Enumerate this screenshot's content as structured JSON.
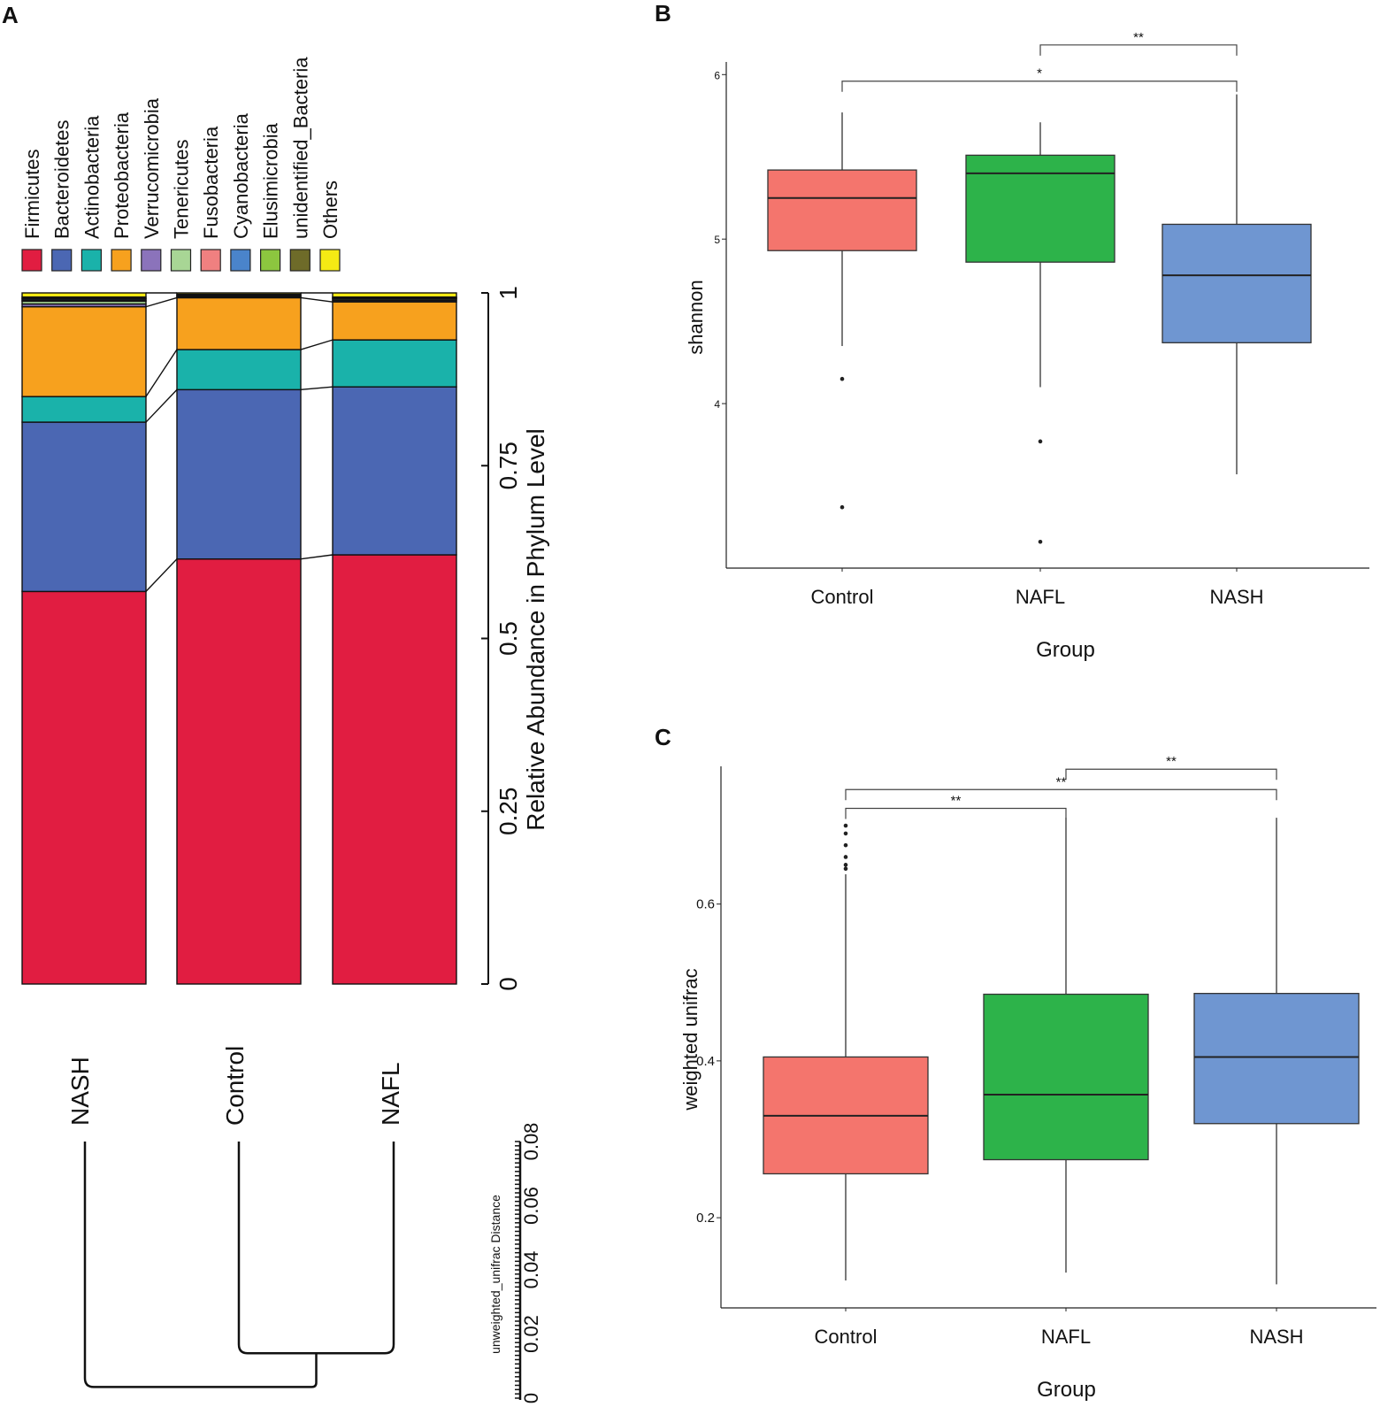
{
  "panels": {
    "a": "A",
    "b": "B",
    "c": "C"
  },
  "chart_data": [
    {
      "id": "A",
      "type": "stacked-bar",
      "orientation": "rotated",
      "ylabel": "Relative Abundance in Phylum Level",
      "ylim": [
        0,
        1
      ],
      "yticks": [
        "0",
        "0.25",
        "0.5",
        "0.75",
        "1"
      ],
      "ytick_values": [
        0,
        0.25,
        0.5,
        0.75,
        1
      ],
      "categories": [
        "NASH",
        "Control",
        "NAFL"
      ],
      "legend": [
        {
          "name": "Firmicutes",
          "color": "#e11d41"
        },
        {
          "name": "Bacteroidetes",
          "color": "#4b67b3"
        },
        {
          "name": "Actinobacteria",
          "color": "#1ab2aa"
        },
        {
          "name": "Proteobacteria",
          "color": "#f7a11e"
        },
        {
          "name": "Verrucomicrobia",
          "color": "#8b73bb"
        },
        {
          "name": "Tenericutes",
          "color": "#a8d695"
        },
        {
          "name": "Fusobacteria",
          "color": "#f08080"
        },
        {
          "name": "Cyanobacteria",
          "color": "#4a84cb"
        },
        {
          "name": "Elusimicrobia",
          "color": "#8cc63f"
        },
        {
          "name": "unidentified_Bacteria",
          "color": "#6e6b29"
        },
        {
          "name": "Others",
          "color": "#f5ea14"
        }
      ],
      "series": [
        {
          "name": "Firmicutes",
          "values": [
            0.568,
            0.615,
            0.621
          ]
        },
        {
          "name": "Bacteroidetes",
          "values": [
            0.245,
            0.245,
            0.243
          ]
        },
        {
          "name": "Actinobacteria",
          "values": [
            0.037,
            0.058,
            0.068
          ]
        },
        {
          "name": "Proteobacteria",
          "values": [
            0.13,
            0.075,
            0.055
          ]
        },
        {
          "name": "Verrucomicrobia",
          "values": [
            0.004,
            0.001,
            0.002
          ]
        },
        {
          "name": "Tenericutes",
          "values": [
            0.004,
            0.001,
            0.002
          ]
        },
        {
          "name": "Fusobacteria",
          "values": [
            0.001,
            0.001,
            0.001
          ]
        },
        {
          "name": "Cyanobacteria",
          "values": [
            0.002,
            0.001,
            0.001
          ]
        },
        {
          "name": "Elusimicrobia",
          "values": [
            0.001,
            0.0,
            0.0
          ]
        },
        {
          "name": "unidentified_Bacteria",
          "values": [
            0.002,
            0.001,
            0.001
          ]
        },
        {
          "name": "Others",
          "values": [
            0.006,
            0.002,
            0.006
          ]
        }
      ],
      "dendrogram": {
        "label": "unweighted_unifrac Distance",
        "ticks": [
          "0",
          "0.02",
          "0.04",
          "0.06",
          "0.08"
        ],
        "tick_values": [
          0,
          0.02,
          0.04,
          0.06,
          0.08
        ],
        "merges": [
          {
            "members": [
              "Control",
              "NAFL"
            ],
            "height": 0.014
          },
          {
            "members": [
              "NASH",
              "Control+NAFL"
            ],
            "height": 0.0035
          }
        ]
      }
    },
    {
      "id": "B",
      "type": "box",
      "xlabel": "Group",
      "ylabel": "shannon",
      "ylim": [
        3.0,
        6.05
      ],
      "yticks": [
        4,
        5,
        6
      ],
      "ytick_labels": [
        "4",
        "5",
        "6"
      ],
      "categories": [
        "Control",
        "NAFL",
        "NASH"
      ],
      "colors": [
        "#f4756d",
        "#2db34a",
        "#6f96d1"
      ],
      "boxes": [
        {
          "q1": 4.93,
          "median": 5.25,
          "q3": 5.42,
          "whisker_low": 4.35,
          "whisker_high": 5.77,
          "outliers": [
            4.15,
            3.37
          ]
        },
        {
          "q1": 4.86,
          "median": 5.4,
          "q3": 5.51,
          "whisker_low": 4.1,
          "whisker_high": 5.71,
          "outliers": [
            3.77,
            3.16
          ]
        },
        {
          "q1": 4.37,
          "median": 4.78,
          "q3": 5.09,
          "whisker_low": 3.57,
          "whisker_high": 5.88,
          "outliers": []
        }
      ],
      "significance": [
        {
          "from": "NAFL",
          "to": "NASH",
          "label": "**",
          "y": 6.18
        },
        {
          "from": "Control",
          "to": "NASH",
          "label": "*",
          "y": 5.96
        }
      ]
    },
    {
      "id": "C",
      "type": "box",
      "xlabel": "Group",
      "ylabel": "weighted unifrac",
      "ylim": [
        0.085,
        0.77
      ],
      "yticks": [
        0.2,
        0.4,
        0.6
      ],
      "ytick_labels": [
        "0.2",
        "0.4",
        "0.6"
      ],
      "categories": [
        "Control",
        "NAFL",
        "NASH"
      ],
      "colors": [
        "#f4756d",
        "#2db34a",
        "#6f96d1"
      ],
      "boxes": [
        {
          "q1": 0.256,
          "median": 0.33,
          "q3": 0.405,
          "whisker_low": 0.12,
          "whisker_high": 0.638,
          "outliers": [
            0.645,
            0.65,
            0.66,
            0.675,
            0.69,
            0.7
          ]
        },
        {
          "q1": 0.274,
          "median": 0.357,
          "q3": 0.485,
          "whisker_low": 0.13,
          "whisker_high": 0.71,
          "outliers": []
        },
        {
          "q1": 0.32,
          "median": 0.405,
          "q3": 0.486,
          "whisker_low": 0.115,
          "whisker_high": 0.71,
          "outliers": []
        }
      ],
      "significance": [
        {
          "from": "NAFL",
          "to": "NASH",
          "label": "**",
          "y": 0.772
        },
        {
          "from": "Control",
          "to": "NASH",
          "label": "**",
          "y": 0.746
        },
        {
          "from": "Control",
          "to": "NAFL",
          "label": "**",
          "y": 0.722
        }
      ]
    }
  ]
}
